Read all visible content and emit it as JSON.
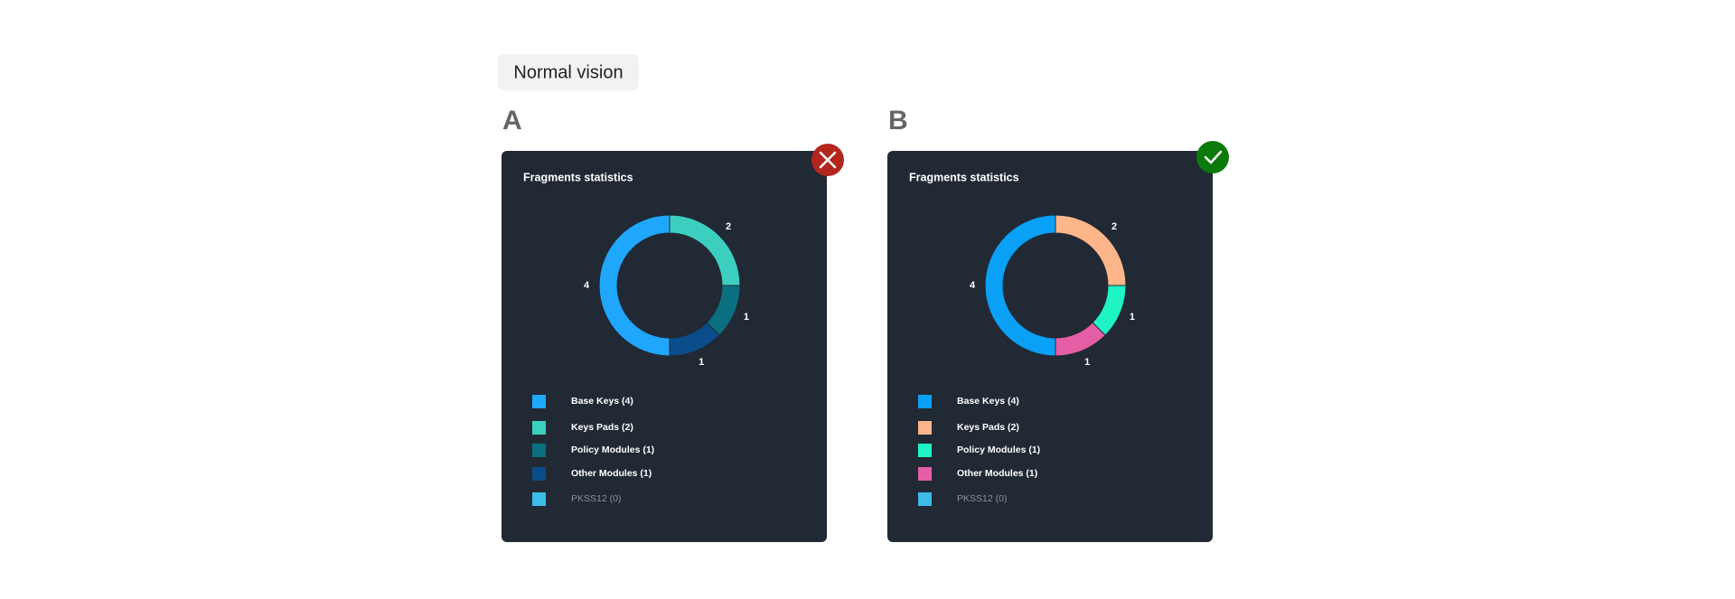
{
  "heading": "Normal vision",
  "chart_data": [
    {
      "type": "donut",
      "panel": "A",
      "title": "Fragments statistics",
      "categories": [
        "Base Keys (4)",
        "Keys Pads (2)",
        "Policy Modules (1)",
        "Other Modules (1)",
        "PKSS12 (0)"
      ],
      "values": [
        4,
        2,
        1,
        1,
        0
      ],
      "colors": [
        "#1ea7fd",
        "#3ccfc0",
        "#0a6f80",
        "#0b4d8a",
        "#3bbde8"
      ]
    },
    {
      "type": "donut",
      "panel": "B",
      "title": "Fragments statistics",
      "categories": [
        "Base Keys (4)",
        "Keys Pads (2)",
        "Policy Modules (1)",
        "Other Modules (1)",
        "PKSS12 (0)"
      ],
      "values": [
        4,
        2,
        1,
        1,
        0
      ],
      "colors": [
        "#0aa0f5",
        "#fdb68a",
        "#1ef4c4",
        "#e45ea6",
        "#3bbde8"
      ]
    }
  ]
}
